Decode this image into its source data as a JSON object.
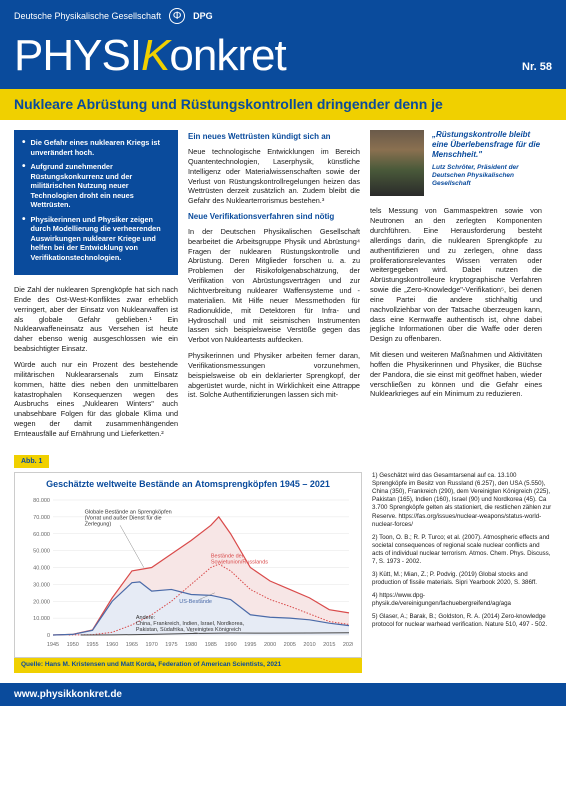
{
  "header": {
    "org": "Deutsche Physikalische Gesellschaft",
    "org_abbr": "DPG",
    "masthead_1": "PHYSI",
    "masthead_k": "K",
    "masthead_2": "onkret",
    "issue": "Nr. 58"
  },
  "headline": "Nukleare Abrüstung und Rüstungskontrollen dringender denn je",
  "bullets": [
    "Die Gefahr eines nuklearen Kriegs ist unverändert hoch.",
    "Aufgrund zunehmender Rüstungskonkurrenz und der militärischen Nutzung neuer Technologien droht ein neues Wettrüsten.",
    "Physikerinnen und Physiker zeigen durch Modellierung die verheerenden Auswirkungen nuklearer Kriege und helfen bei der Entwicklung von Verifikationstechnologien."
  ],
  "quote": {
    "text": "„Rüstungskontrolle bleibt eine Überlebensfrage für die Menschheit.\"",
    "attr": "Lutz Schröter, Präsident der Deutschen Physikalischen Gesellschaft"
  },
  "col_left": {
    "p1": "Die Zahl der nuklearen Sprengköpfe hat sich nach Ende des Ost-West-Konfliktes zwar erheblich verringert, aber der Einsatz von Nuklearwaffen ist als globale Gefahr geblieben.¹ Ein Nuklearwaffeneinsatz aus Versehen ist heute daher ebenso wenig ausgeschlossen wie ein beabsichtigter Einsatz.",
    "p2": "Würde auch nur ein Prozent des bestehende militärischen Nukleararsenals zum Einsatz kommen, hätte dies neben den unmittelbaren katastrophalen Konsequenzen wegen des Ausbruchs eines „Nuklearen Winters\" auch unabsehbare Folgen für das globale Klima und wegen der damit zusammenhängenden Ernteausfälle auf Ernährung und Lieferketten.²"
  },
  "col_mid": {
    "h1": "Ein neues Wettrüsten kündigt sich an",
    "p1": "Neue technologische Entwicklungen im Bereich Quantentechnologien, Laserphysik, künstliche Intelligenz oder Materialwissenschaften sowie der Verlust von Rüstungskontrollregelungen heizen das Wettrüsten derzeit zusätzlich an. Zudem bleibt die Gefahr des Nuklearterrorismus bestehen.³",
    "h2": "Neue Verifikationsverfahren sind nötig",
    "p2": "In der Deutschen Physikalischen Gesellschaft bearbeitet die Arbeitsgruppe Physik und Abrüstung⁴ Fragen der nuklearen Rüstungskontrolle und Abrüstung. Deren Mitglieder forschen u. a. zu Problemen der Risikofolgenabschätzung, der Verifikation von Abrüstungsverträgen und zur Nichtverbreitung nuklearer Waffensysteme und -materialien. Mit Hilfe neuer Messmethoden für Radionuklide, mit Detektoren für Infra- und Hydroschall und mit seismischen Instrumenten lassen sich beispielsweise Verstöße gegen das Verbot von Nukleartests aufdecken.",
    "p3": "Physikerinnen und Physiker arbeiten ferner daran, Verifikationsmessungen vorzunehmen, beispielsweise ob ein deklarierter Sprengkopf, der abgerüstet wurde, nicht in Wirklichkeit eine Attrappe ist. Solche Authentifizierungen lassen sich mit-"
  },
  "col_right": {
    "p1": "tels Messung von Gammaspektren sowie von Neutronen an den zerlegten Komponenten durchführen. Eine Herausforderung besteht allerdings darin, die nuklearen Sprengköpfe zu authentifizieren und zu zerlegen, ohne dass proliferationsrelevantes Wissen verraten oder weitergegeben wird. Dabei nutzen die Abrüstungskontrolleure kryptographische Verfahren sowie die „Zero-Knowledge\"-Verifikation⁵, bei denen eine Partei die andere stichhaltig und nachvollziehbar von der Tatsache überzeugen kann, dass eine Kernwaffe authentisch ist, ohne dabei jegliche Informationen über die Waffe oder deren Design zu offenbaren.",
    "p2": "Mit diesen und weiteren Maßnahmen und Aktivitäten hoffen die Physikerinnen und Physiker, die Büchse der Pandora, die sie einst mit geöffnet haben, wieder verschließen zu können und die Gefahr eines Nuklearkrieges auf ein Minimum zu reduzieren."
  },
  "chart": {
    "abb": "Abb. 1",
    "title": "Geschätzte weltweite Bestände an Atomsprengköpfen 1945 – 2021",
    "type": "area",
    "ylim": [
      0,
      80000
    ],
    "yticks": [
      0,
      10000,
      20000,
      30000,
      40000,
      50000,
      60000,
      70000,
      80000
    ],
    "xlim": [
      1945,
      2020
    ],
    "xticks": [
      1945,
      1950,
      1955,
      1960,
      1965,
      1970,
      1975,
      1980,
      1985,
      1990,
      1995,
      2000,
      2005,
      2010,
      2015,
      2020
    ],
    "label_global": "Globale Bestände an Sprengköpfen\n(Vorrat und außer Dienst für die\nZerlegung)",
    "label_sov": "Bestände der\nSowjetunion/Russlands",
    "label_us": "US-Bestände",
    "label_other": "Andere:\nChina, Frankreich, Indien, Israel, Nordkorea,\nPakistan, Südafrika, Vereinigtes Königreich",
    "colors": {
      "global": "#d94a4a",
      "sov": "#d94a4a",
      "us": "#4a6aa8",
      "other": "#4a4a4a",
      "grid": "#e4e4e4",
      "area_global": "#f7e6e6",
      "area_us": "#e6ebf5"
    },
    "series": {
      "global": [
        [
          1945,
          2
        ],
        [
          1950,
          400
        ],
        [
          1955,
          3000
        ],
        [
          1960,
          22000
        ],
        [
          1965,
          38000
        ],
        [
          1970,
          40000
        ],
        [
          1975,
          48000
        ],
        [
          1980,
          56000
        ],
        [
          1985,
          65000
        ],
        [
          1987,
          70000
        ],
        [
          1990,
          60000
        ],
        [
          1995,
          40000
        ],
        [
          2000,
          32000
        ],
        [
          2005,
          27000
        ],
        [
          2010,
          22000
        ],
        [
          2015,
          15000
        ],
        [
          2020,
          13100
        ]
      ],
      "us": [
        [
          1945,
          2
        ],
        [
          1950,
          350
        ],
        [
          1955,
          2800
        ],
        [
          1960,
          20000
        ],
        [
          1965,
          31000
        ],
        [
          1967,
          31500
        ],
        [
          1970,
          26000
        ],
        [
          1975,
          27000
        ],
        [
          1980,
          24000
        ],
        [
          1985,
          23500
        ],
        [
          1990,
          21000
        ],
        [
          1995,
          12000
        ],
        [
          2000,
          10500
        ],
        [
          2005,
          10000
        ],
        [
          2010,
          9000
        ],
        [
          2015,
          7000
        ],
        [
          2020,
          5550
        ]
      ],
      "sov": [
        [
          1949,
          1
        ],
        [
          1955,
          200
        ],
        [
          1960,
          1600
        ],
        [
          1965,
          6000
        ],
        [
          1970,
          12000
        ],
        [
          1975,
          20000
        ],
        [
          1980,
          30000
        ],
        [
          1985,
          40000
        ],
        [
          1987,
          42000
        ],
        [
          1990,
          38000
        ],
        [
          1995,
          27000
        ],
        [
          2000,
          21000
        ],
        [
          2005,
          17000
        ],
        [
          2010,
          12500
        ],
        [
          2015,
          8000
        ],
        [
          2020,
          6257
        ]
      ],
      "other": [
        [
          1952,
          1
        ],
        [
          1960,
          50
        ],
        [
          1970,
          400
        ],
        [
          1980,
          900
        ],
        [
          1990,
          1200
        ],
        [
          2000,
          1100
        ],
        [
          2010,
          1200
        ],
        [
          2020,
          1300
        ]
      ]
    },
    "source": "Quelle: Hans M. Kristensen und Matt Korda, Federation of American Scientists, 2021"
  },
  "refs": [
    "1) Geschätzt wird das Gesamtarsenal auf ca. 13.100 Sprengköpfe im Besitz von Russland (6.257), den USA (5.550), China (350), Frankreich (290), dem Vereinigten Königreich (225), Pakistan (165), Indien (160), Israel (90) und Nordkorea (45). Ca 3.700 Sprengköpfe gelten als stationiert, die restlichen zählen zur Reserve. https://fas.org/issues/nuclear-weapons/status-world-nuclear-forces/",
    "2) Toon, O. B.; R. P. Turco; et al. (2007). Atmospheric effects and societal consequences of regional scale nuclear conflicts and acts of individual nuclear terrorism. Atmos. Chem. Phys. Discuss, 7, S. 1973 - 2002.",
    "3) Kütt, M.; Mian, Z.; P. Podvig. (2019) Global stocks and production of fissile materials. Sipri Yearbook 2020, S. 386ff.",
    "4) https://www.dpg-physik.de/vereinigungen/fachuebergreifend/ag/aga",
    "5) Glaser, A.; Barak, B.; Goldston, R. A. (2014) Zero-knowledge protocol for nuclear warhead verification. Nature 510, 497 - 502."
  ],
  "footer": "www.physikkonkret.de"
}
